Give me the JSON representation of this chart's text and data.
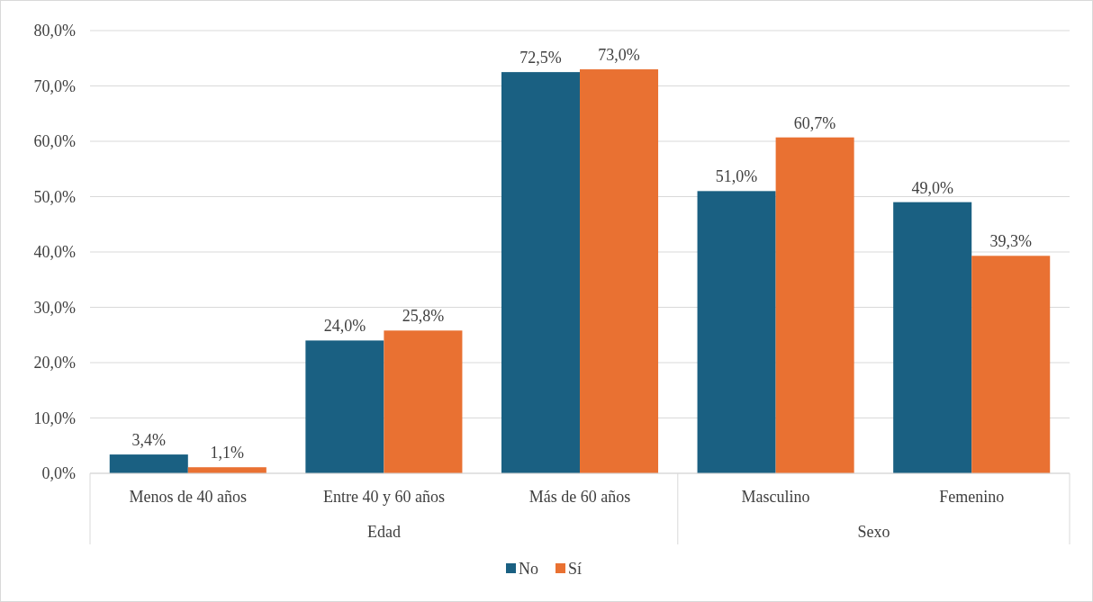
{
  "chart_data": {
    "type": "bar",
    "categories": [
      "Menos de 40 años",
      "Entre 40 y 60 años",
      "Más de 60 años",
      "Masculino",
      "Femenino"
    ],
    "series": [
      {
        "name": "No",
        "color": "#1a6082",
        "values": [
          3.4,
          24.0,
          72.5,
          51.0,
          49.0
        ],
        "value_labels": [
          "3,4%",
          "24,0%",
          "72,5%",
          "51,0%",
          "49,0%"
        ]
      },
      {
        "name": "Sí",
        "color": "#e97132",
        "values": [
          1.1,
          25.8,
          73.0,
          60.7,
          39.3
        ],
        "value_labels": [
          "1,1%",
          "25,8%",
          "73,0%",
          "60,7%",
          "39,3%"
        ]
      }
    ],
    "ylim": [
      0,
      80
    ],
    "yticks": [
      {
        "value": 0,
        "label": "0,0%"
      },
      {
        "value": 10,
        "label": "10,0%"
      },
      {
        "value": 20,
        "label": "20,0%"
      },
      {
        "value": 30,
        "label": "30,0%"
      },
      {
        "value": 40,
        "label": "40,0%"
      },
      {
        "value": 50,
        "label": "50,0%"
      },
      {
        "value": 60,
        "label": "60,0%"
      },
      {
        "value": 70,
        "label": "70,0%"
      },
      {
        "value": 80,
        "label": "80,0%"
      }
    ],
    "grid": "y",
    "legend": "bottom",
    "annotations": [
      "Edad",
      "Sexo"
    ]
  }
}
